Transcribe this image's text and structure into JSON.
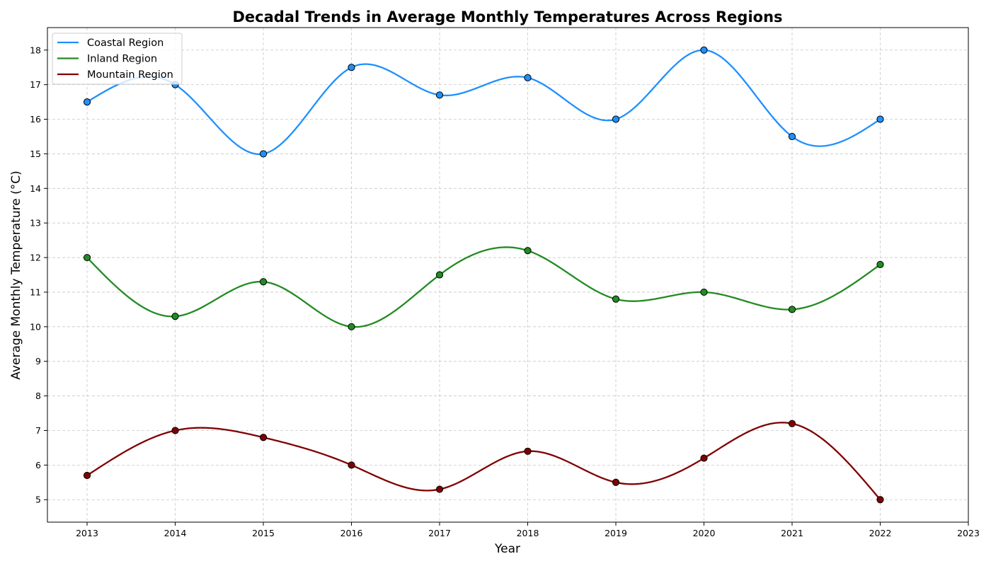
{
  "chart_data": {
    "type": "line",
    "title": "Decadal Trends in Average Monthly Temperatures Across Regions",
    "xlabel": "Year",
    "ylabel": "Average Monthly Temperature (°C)",
    "x": [
      2013,
      2014,
      2015,
      2016,
      2017,
      2018,
      2019,
      2020,
      2021,
      2022
    ],
    "xlim": [
      2012.55,
      2023
    ],
    "ylim": [
      4.35,
      18.65
    ],
    "xticks": [
      2013,
      2014,
      2015,
      2016,
      2017,
      2018,
      2019,
      2020,
      2021,
      2022,
      2023
    ],
    "yticks": [
      5,
      6,
      7,
      8,
      9,
      10,
      11,
      12,
      13,
      14,
      15,
      16,
      17,
      18
    ],
    "grid": true,
    "legend_position": "top-left",
    "series": [
      {
        "name": "Coastal Region",
        "color": "#1e90ff",
        "values": [
          16.5,
          17.0,
          15.0,
          17.5,
          16.7,
          17.2,
          16.0,
          18.0,
          15.5,
          16.0
        ]
      },
      {
        "name": "Inland Region",
        "color": "#228b22",
        "values": [
          12.0,
          10.3,
          11.3,
          10.0,
          11.5,
          12.2,
          10.8,
          11.0,
          10.5,
          11.8
        ]
      },
      {
        "name": "Mountain Region",
        "color": "#800000",
        "values": [
          5.7,
          7.0,
          6.8,
          6.0,
          5.3,
          6.4,
          5.5,
          6.2,
          7.2,
          5.0
        ]
      }
    ]
  }
}
